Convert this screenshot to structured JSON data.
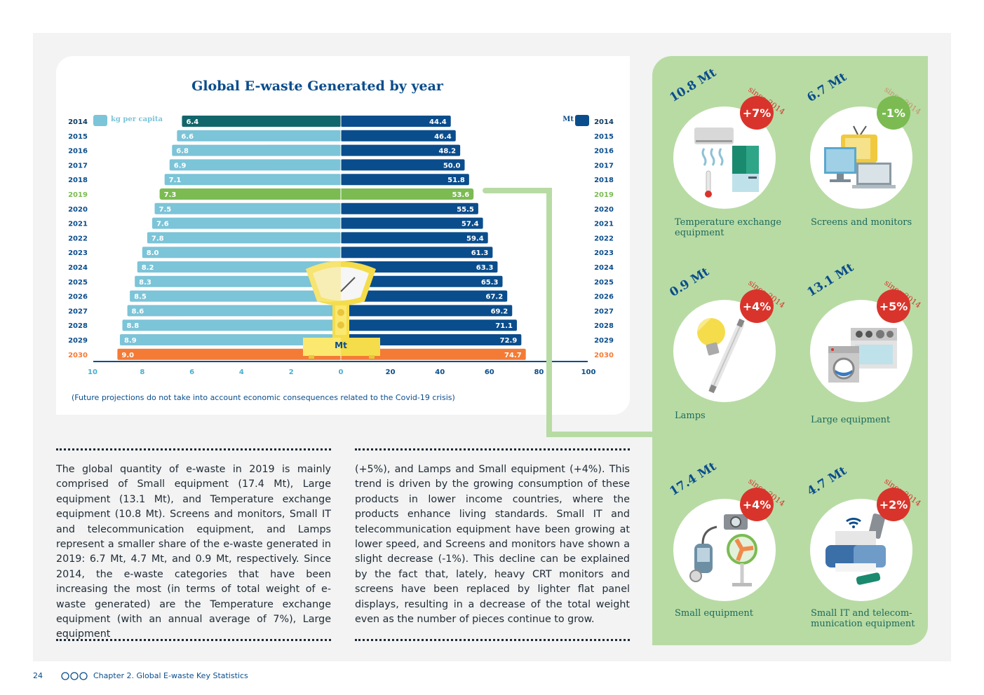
{
  "chart_data": {
    "type": "bar",
    "title": "Global E-waste Generated by year",
    "left_legend": "kg per capita",
    "right_legend": "Mt",
    "categories": [
      "2014",
      "2015",
      "2016",
      "2017",
      "2018",
      "2019",
      "2020",
      "2021",
      "2022",
      "2023",
      "2024",
      "2025",
      "2026",
      "2027",
      "2028",
      "2029",
      "2030"
    ],
    "series": [
      {
        "name": "kg per capita",
        "values": [
          6.4,
          6.6,
          6.8,
          6.9,
          7.1,
          7.3,
          7.5,
          7.6,
          7.8,
          8.0,
          8.2,
          8.3,
          8.5,
          8.6,
          8.8,
          8.9,
          9.0
        ]
      },
      {
        "name": "Mt",
        "values": [
          44.4,
          46.4,
          48.2,
          50.0,
          51.8,
          53.6,
          55.5,
          57.4,
          59.4,
          61.3,
          63.3,
          65.3,
          67.2,
          69.2,
          71.1,
          72.9,
          74.7
        ]
      }
    ],
    "left_ticks": [
      "10",
      "8",
      "6",
      "4",
      "2",
      "0"
    ],
    "right_ticks": [
      "20",
      "40",
      "60",
      "80",
      "100"
    ],
    "left_xlim": [
      0,
      10
    ],
    "right_xlim": [
      0,
      100
    ],
    "note": "(Future projections do not take into account economic consequences related to the Covid-19 crisis)",
    "scale_label": "Mt",
    "colors": {
      "kg": "#7cc4d8",
      "mt": "#0a4d8c",
      "first_kg": "#11666b",
      "first_mt": "#0a4d8c",
      "highlight": "#7bbb52",
      "final": "#f47b35"
    }
  },
  "text": {
    "col1": "The global quantity of e-waste in 2019 is mainly comprised of Small equipment (17.4 Mt), Large equipment (13.1 Mt), and Temperature exchange equipment (10.8 Mt). Screens and monitors, Small IT and telecommunication equipment, and Lamps represent a smaller share of the e-waste generated in 2019: 6.7 Mt, 4.7 Mt, and 0.9 Mt, respectively. Since 2014, the e-waste categories that have been increasing the most (in terms of total weight of e-waste generated) are the Temperature exchange equipment (with an annual average of 7%), Large equipment",
    "col2": "(+5%), and Lamps and Small equipment (+4%). This trend is driven by the growing consumption of these products in lower income countries, where the products enhance living standards. Small IT and telecommunication equipment have been growing at lower speed, and Screens and monitors have shown a slight decrease (-1%). This decline can be explained by the fact that, lately, heavy CRT monitors and screens have been replaced by lighter flat panel displays, resulting in a decrease of the total weight even as the number of pieces continue to grow."
  },
  "categories": [
    {
      "value": "10.8 Mt",
      "since": "since 2014",
      "change": "+7%",
      "color": "#d9342b",
      "label": "Temperature exchange equipment",
      "icon": "air-conditioner-fridge-icon"
    },
    {
      "value": "6.7 Mt",
      "since": "since 2014",
      "change": "-1%",
      "color": "#7bbb52",
      "label": "Screens and monitors",
      "icon": "tv-monitor-laptop-icon"
    },
    {
      "value": "0.9 Mt",
      "since": "since 2014",
      "change": "+4%",
      "color": "#d9342b",
      "label": "Lamps",
      "icon": "lamp-bulb-icon"
    },
    {
      "value": "13.1 Mt",
      "since": "since 2014",
      "change": "+5%",
      "color": "#d9342b",
      "label": "Large equipment",
      "icon": "washing-machine-stove-icon"
    },
    {
      "value": "17.4 Mt",
      "since": "since 2014",
      "change": "+4%",
      "color": "#d9342b",
      "label": "Small equipment",
      "icon": "vacuum-fan-camera-icon"
    },
    {
      "value": "4.7 Mt",
      "since": "since 2014",
      "change": "+2%",
      "color": "#d9342b",
      "label": "Small IT and telecom-munication equipment",
      "icon": "printer-phone-usb-icon"
    }
  ],
  "footer": {
    "page": "24",
    "chapter": "Chapter 2. Global E-waste Key Statistics"
  }
}
